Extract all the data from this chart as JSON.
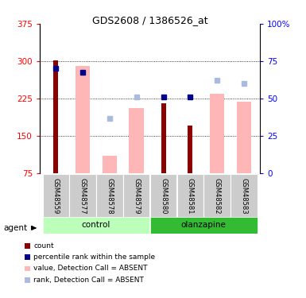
{
  "title": "GDS2608 / 1386526_at",
  "samples": [
    "GSM48559",
    "GSM48577",
    "GSM48578",
    "GSM48579",
    "GSM48580",
    "GSM48581",
    "GSM48582",
    "GSM48583"
  ],
  "count_values": [
    302,
    null,
    null,
    null,
    215,
    170,
    null,
    null
  ],
  "pink_bar_values": [
    null,
    290,
    110,
    205,
    null,
    null,
    235,
    218
  ],
  "blue_square_values": [
    285,
    278,
    null,
    null,
    228,
    228,
    null,
    null
  ],
  "light_blue_square_values": [
    null,
    null,
    185,
    228,
    null,
    null,
    262,
    255
  ],
  "ymin": 75,
  "ymax": 375,
  "yticks": [
    75,
    150,
    225,
    300,
    375
  ],
  "right_yticks": [
    0,
    25,
    50,
    75,
    100
  ],
  "dark_red": "#8B0000",
  "pink": "#FFB6B6",
  "dark_blue": "#00008B",
  "light_blue": "#AABBDD",
  "control_light": "#BBFFBB",
  "olanzapine_dark": "#33BB33",
  "sample_bg": "#CCCCCC"
}
